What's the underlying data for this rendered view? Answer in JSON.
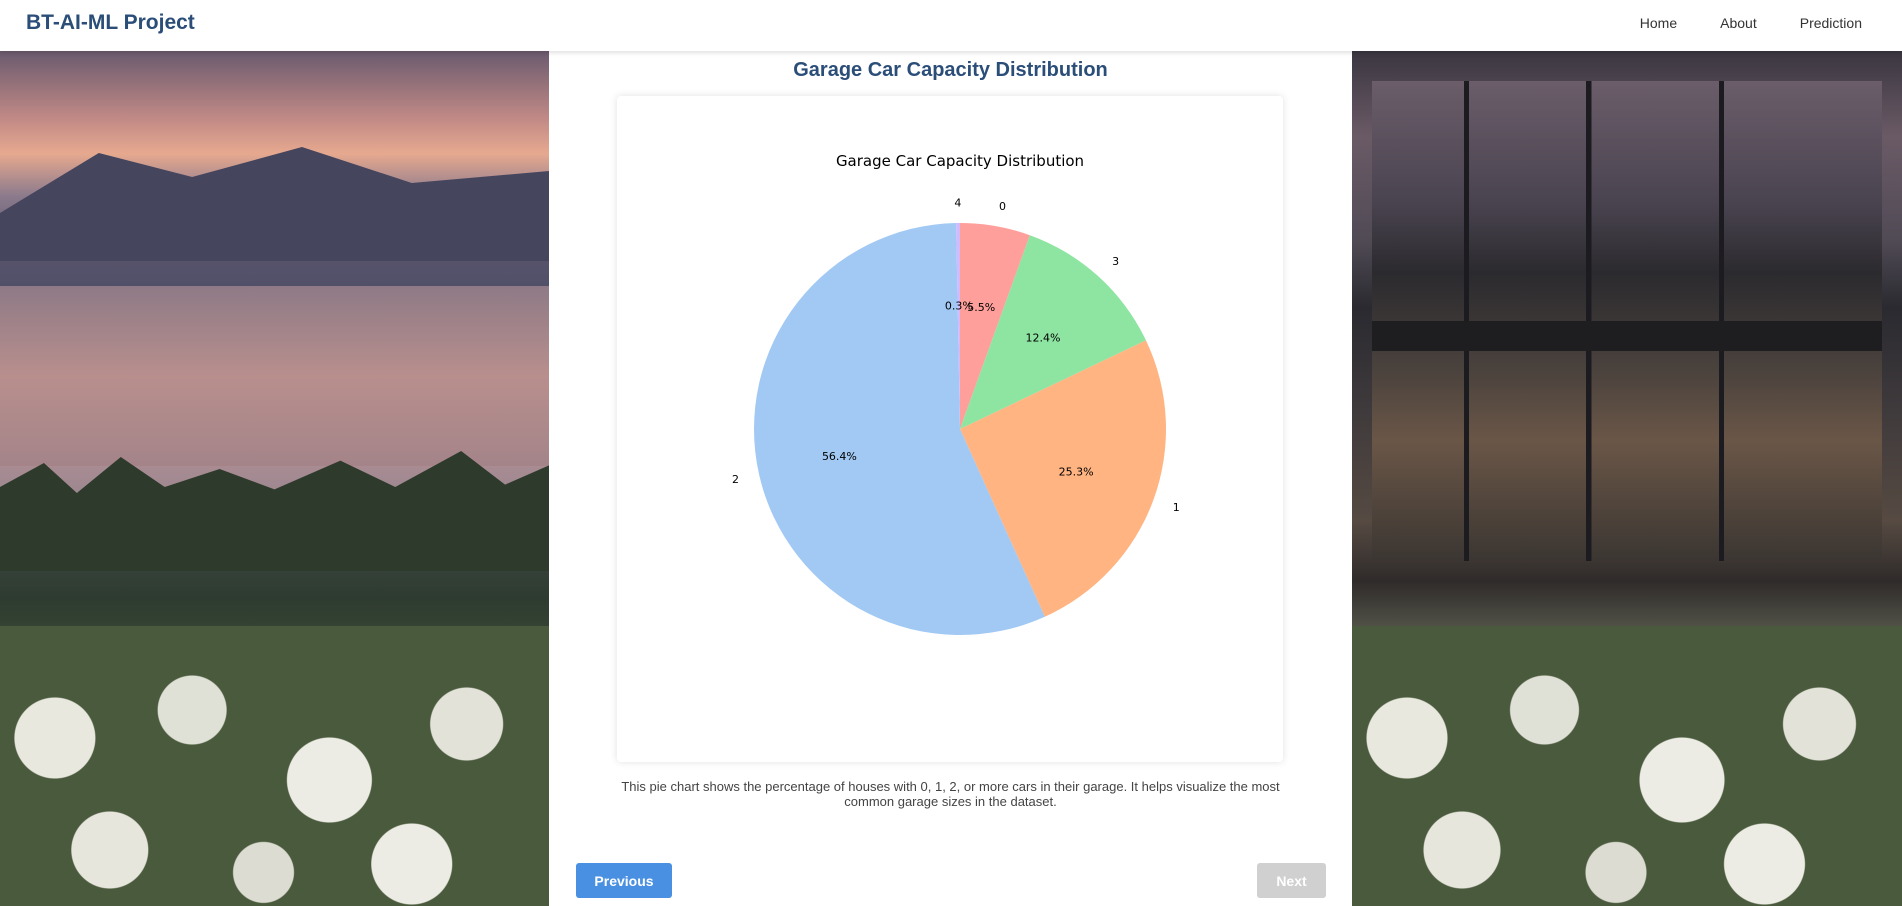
{
  "navbar": {
    "brand": "BT-AI-ML Project",
    "links": [
      "Home",
      "About",
      "Prediction"
    ]
  },
  "page": {
    "title": "Garage Car Capacity Distribution",
    "caption": "This pie chart shows the percentage of houses with 0, 1, 2, or more cars in their garage. It helps visualize the most common garage sizes in the dataset.",
    "prev_label": "Previous",
    "next_label": "Next"
  },
  "colors": {
    "brand": "#2b4e79",
    "primary_button": "#4a90e2",
    "disabled_button": "#d0d0d0"
  },
  "chart_data": {
    "type": "pie",
    "title": "Garage Car Capacity Distribution",
    "slices": [
      {
        "label": "0",
        "value": 5.5,
        "pct_label": "5.5%",
        "color": "#ff9f9b"
      },
      {
        "label": "3",
        "value": 12.4,
        "pct_label": "12.4%",
        "color": "#8de5a1"
      },
      {
        "label": "1",
        "value": 25.3,
        "pct_label": "25.3%",
        "color": "#ffb482"
      },
      {
        "label": "2",
        "value": 56.4,
        "pct_label": "56.4%",
        "color": "#a1c9f4"
      },
      {
        "label": "4",
        "value": 0.3,
        "pct_label": "0.3%",
        "color": "#d0bbff"
      }
    ],
    "start_angle_deg": 90,
    "direction": "clockwise",
    "legend": "none"
  }
}
